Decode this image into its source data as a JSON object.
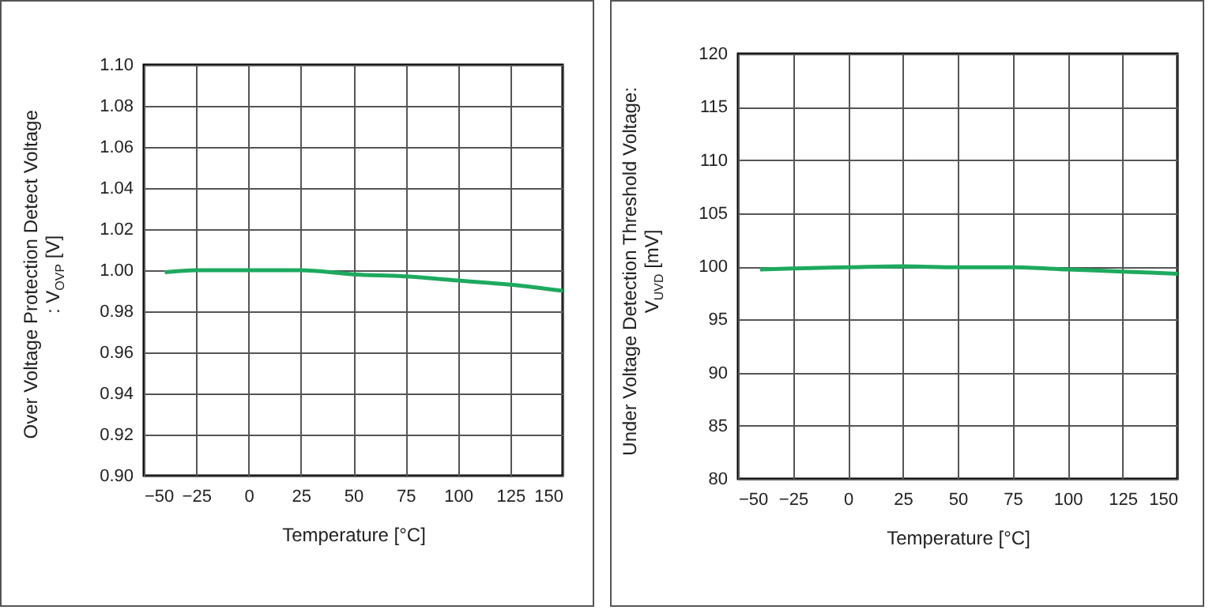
{
  "chart_data": [
    {
      "type": "line",
      "xlabel": "Temperature [°C]",
      "ylabel": "Over Voltage Protection Detect Voltage\n: V$_{OVP}$ [V]",
      "x": [
        -40,
        -25,
        0,
        25,
        50,
        75,
        100,
        125,
        150
      ],
      "series": [
        {
          "color": "#1daa5e",
          "values": [
            0.999,
            1.0,
            1.0,
            1.0,
            0.998,
            0.997,
            0.995,
            0.993,
            0.99
          ]
        }
      ],
      "xlim": [
        -50,
        150
      ],
      "xticks": [
        -50,
        -25,
        0,
        25,
        50,
        75,
        100,
        125,
        150
      ],
      "ylim": [
        0.9,
        1.1
      ],
      "yticks": [
        {
          "value": 0.9,
          "label": "0.90"
        },
        {
          "value": 0.92,
          "label": "0.92"
        },
        {
          "value": 0.94,
          "label": "0.94"
        },
        {
          "value": 0.96,
          "label": "0.96"
        },
        {
          "value": 0.98,
          "label": "0.98"
        },
        {
          "value": 1.0,
          "label": "1.00"
        },
        {
          "value": 1.02,
          "label": "1.02"
        },
        {
          "value": 1.04,
          "label": "1.04"
        },
        {
          "value": 1.06,
          "label": "1.06"
        },
        {
          "value": 1.08,
          "label": "1.08"
        },
        {
          "value": 1.1,
          "label": "1.10"
        }
      ],
      "grid": true
    },
    {
      "type": "line",
      "xlabel": "Temperature [°C]",
      "ylabel": "Under Voltage Detection Threshold Voltage:\nV$_{UVD}$ [mV]",
      "x": [
        -40,
        -25,
        0,
        25,
        50,
        75,
        100,
        125,
        150
      ],
      "series": [
        {
          "color": "#1daa5e",
          "values": [
            99.7,
            99.8,
            99.9,
            100.0,
            99.9,
            99.9,
            99.7,
            99.5,
            99.3
          ]
        }
      ],
      "xlim": [
        -50,
        150
      ],
      "xticks": [
        -50,
        -25,
        0,
        25,
        50,
        75,
        100,
        125,
        150
      ],
      "ylim": [
        80,
        120
      ],
      "yticks": [
        80,
        85,
        90,
        95,
        100,
        105,
        110,
        115,
        120
      ],
      "grid": true
    }
  ]
}
